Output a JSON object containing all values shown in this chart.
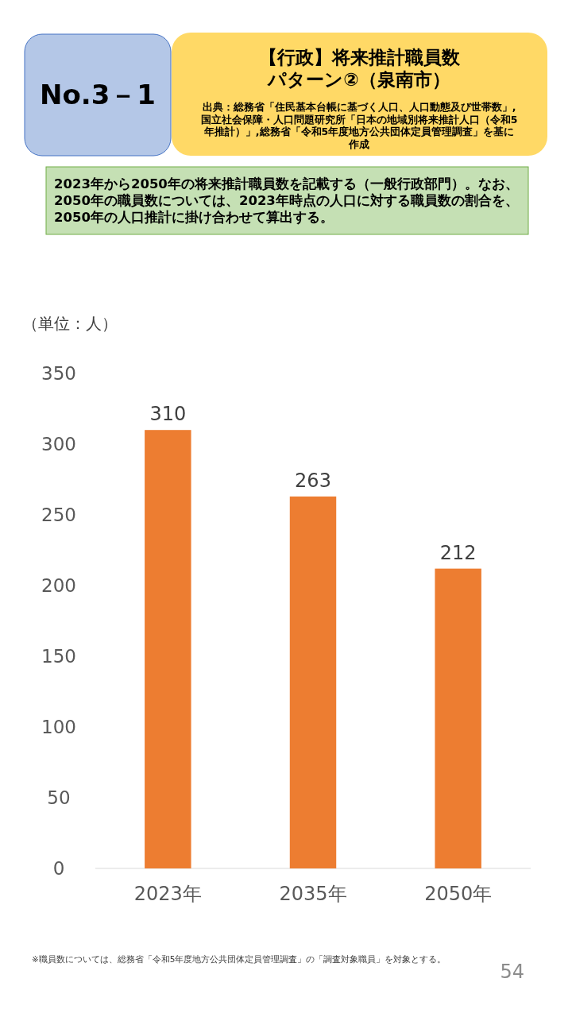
{
  "chart_data": {
    "type": "bar",
    "title": "【行政】将来推計職員数パターン②（泉南市）",
    "subtitle": "出典：総務省「住民基本台帳に基づく人口、人口動態及び世帯数」,国立社会保障・人口問題研究所「日本の地域別将来推計人口（令和5年推計）」,総務省「令和5年度地方公共団体定員管理調査」を基に作成",
    "ylabel": "（単位：人）",
    "annotations": [
      "No.3－1",
      "2023年から2050年の将来推計職員数を記載する（一般行政部門）。なお、2050年の職員数については、2023年時点の人口に対する職員数の割合を、2050年の人口推計に掛け合わせて算出する。",
      "※職員数については、総務省「令和5年度地方公共団体定員管理調査」の「調査対象職員」を対象とする。",
      "54"
    ],
    "categories": [
      "2023年",
      "2035年",
      "2050年"
    ],
    "values": [
      310,
      263,
      212
    ],
    "color": "#ed7d31",
    "ylim": [
      0,
      350
    ],
    "yticks": [
      0,
      50,
      100,
      150,
      200,
      250,
      300,
      350
    ],
    "data_labels": true
  }
}
